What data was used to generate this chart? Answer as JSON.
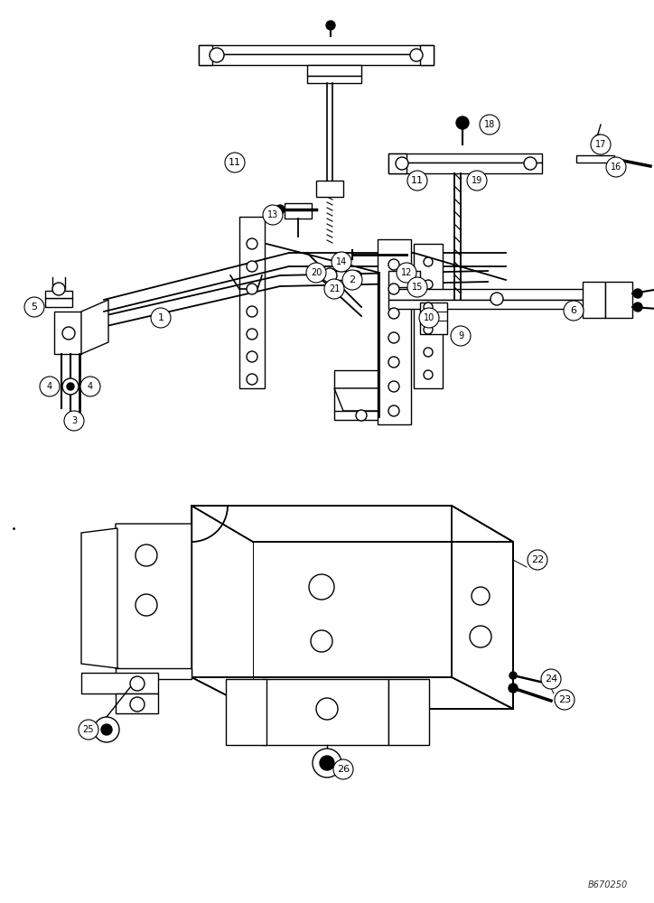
{
  "bg_color": "#ffffff",
  "lc": "#000000",
  "fig_width": 7.24,
  "fig_height": 10.0,
  "dpi": 100,
  "watermark": "B670250",
  "lw": 1.0
}
